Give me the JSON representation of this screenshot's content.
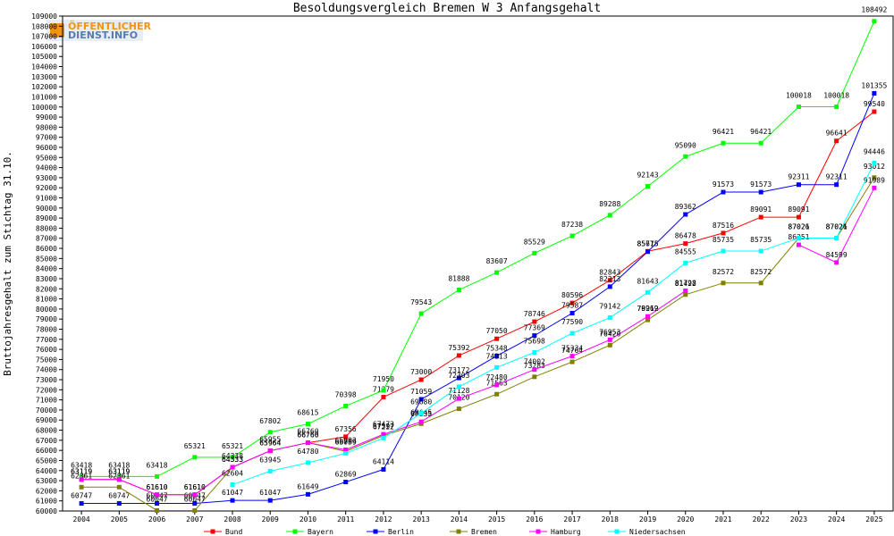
{
  "chart_data": {
    "type": "line",
    "title": "Besoldungsvergleich Bremen W 3 Anfangsgehalt",
    "xlabel": "",
    "ylabel": "Bruttojahresgehalt zum Stichtag 31.10.",
    "ylim": [
      60000,
      109000
    ],
    "ytick_step": 1000,
    "grid": false,
    "legend_position": "bottom",
    "categories": [
      "2004",
      "2005",
      "2006",
      "2007",
      "2008",
      "2009",
      "2010",
      "2011",
      "2012",
      "2013",
      "2014",
      "2015",
      "2016",
      "2017",
      "2018",
      "2019",
      "2020",
      "2021",
      "2022",
      "2023",
      "2024",
      "2025"
    ],
    "series": [
      {
        "name": "Bund",
        "color": "#ff0000",
        "values": [
          63119,
          63119,
          61610,
          61610,
          64333,
          65964,
          66760,
          67356,
          71279,
          73000,
          75392,
          77050,
          78746,
          80596,
          82843,
          85715,
          86478,
          87516,
          89091,
          89091,
          96641,
          99540
        ]
      },
      {
        "name": "Bayern",
        "color": "#00ff00",
        "values": [
          63418,
          63418,
          63418,
          65321,
          65321,
          67802,
          68615,
          70398,
          71950,
          79543,
          81888,
          83607,
          85529,
          87238,
          89288,
          92143,
          95090,
          96421,
          96421,
          100018,
          100018,
          108492
        ]
      },
      {
        "name": "Berlin",
        "color": "#0000ff",
        "values": [
          60747,
          60747,
          60747,
          60747,
          61047,
          61047,
          61649,
          62869,
          64114,
          71059,
          73172,
          75348,
          77369,
          79587,
          82213,
          85675,
          89362,
          91573,
          91573,
          92311,
          92311,
          101355
        ]
      },
      {
        "name": "Bremen",
        "color": "#808000",
        "values": [
          62361,
          62361,
          60047,
          60047,
          64338,
          65955,
          66760,
          65902,
          67473,
          68645,
          70120,
          71563,
          73283,
          74764,
          76420,
          78919,
          81422,
          82572,
          82572,
          87021,
          87021,
          93012
        ]
      },
      {
        "name": "Hamburg",
        "color": "#ff00ff",
        "values": [
          63119,
          63119,
          61610,
          61610,
          64333,
          65964,
          66760,
          66059,
          67597,
          68835,
          71128,
          72480,
          74002,
          75334,
          76953,
          79262,
          81798,
          null,
          null,
          86351,
          84599,
          91989
        ]
      },
      {
        "name": "Niedersachsen",
        "color": "#00ffff",
        "values": [
          null,
          null,
          null,
          null,
          62604,
          63945,
          64780,
          65709,
          67222,
          69680,
          72303,
          74213,
          75698,
          77590,
          79142,
          81643,
          84555,
          85735,
          85735,
          87026,
          87026,
          94446
        ]
      }
    ]
  },
  "logo": {
    "line1": "ÖFFENTLICHER",
    "line2": "DIENST.INFO"
  }
}
